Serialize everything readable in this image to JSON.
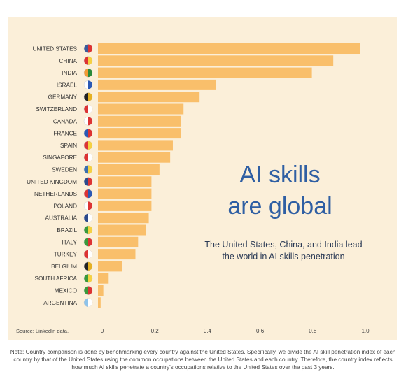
{
  "chart_data": {
    "type": "bar",
    "orientation": "horizontal",
    "categories": [
      "UNITED STATES",
      "CHINA",
      "INDIA",
      "ISRAEL",
      "GERMANY",
      "SWITZERLAND",
      "CANADA",
      "FRANCE",
      "SPAIN",
      "SINGAPORE",
      "SWEDEN",
      "UNITED KINGDOM",
      "NETHERLANDS",
      "POLAND",
      "AUSTRALIA",
      "BRAZIL",
      "ITALY",
      "TURKEY",
      "BELGIUM",
      "SOUTH AFRICA",
      "MEXICO",
      "ARGENTINA"
    ],
    "values": [
      0.98,
      0.88,
      0.8,
      0.44,
      0.38,
      0.32,
      0.31,
      0.31,
      0.28,
      0.27,
      0.23,
      0.2,
      0.2,
      0.2,
      0.19,
      0.18,
      0.15,
      0.14,
      0.09,
      0.04,
      0.02,
      0.01
    ],
    "xlim": [
      0,
      1.0
    ],
    "xticks": [
      "0",
      "0.2",
      "0.4",
      "0.6",
      "0.8",
      "1.0"
    ],
    "bar_color": "#f9bf6b",
    "grid": false,
    "flag_icons": [
      "us-flag-icon",
      "china-flag-icon",
      "india-flag-icon",
      "israel-flag-icon",
      "germany-flag-icon",
      "switzerland-flag-icon",
      "canada-flag-icon",
      "france-flag-icon",
      "spain-flag-icon",
      "singapore-flag-icon",
      "sweden-flag-icon",
      "uk-flag-icon",
      "netherlands-flag-icon",
      "poland-flag-icon",
      "australia-flag-icon",
      "brazil-flag-icon",
      "italy-flag-icon",
      "turkey-flag-icon",
      "belgium-flag-icon",
      "south-africa-flag-icon",
      "mexico-flag-icon",
      "argentina-flag-icon"
    ]
  },
  "headline": {
    "line1": "AI skills",
    "line2": "are global"
  },
  "subhead": "The United States, China, and India lead the world in AI skills penetration",
  "source": "Source: LinkedIn data.",
  "note": "Note: Country comparison is done by benchmarking every country against the United States. Specifically, we divide the AI skill penetration index of each country by that of the United States using the common occupations between the United States and each country. Therefore, the country index reflects how much AI skills penetrate a country's occupations relative to the United States over the past 3 years.",
  "colors": {
    "background": "#fbefd9",
    "bar": "#f9bf6b",
    "headline": "#2f5fa3"
  }
}
